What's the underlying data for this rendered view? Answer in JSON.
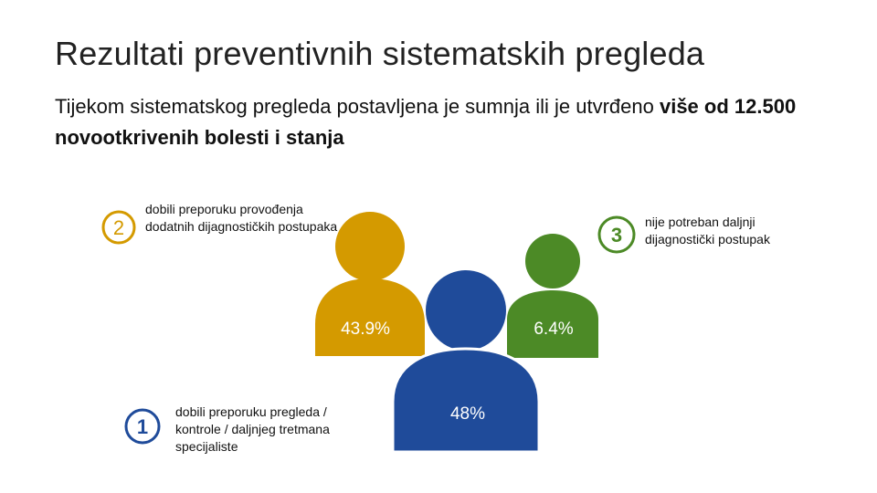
{
  "page": {
    "title": "Rezultati preventivnih sistematskih pregleda",
    "subtitle_regular": "Tijekom sistematskog pregleda postavljena je sumnja ili je utvrđeno ",
    "subtitle_bold": "više od 12.500 novootkrivenih bolesti i stanja"
  },
  "colors": {
    "gold": "#d49a00",
    "blue": "#1f4b9a",
    "green": "#4c8a26",
    "badge_gold": "#d49a00",
    "badge_blue": "#1f4b9a",
    "badge_green": "#4c8a26"
  },
  "chart_data": {
    "type": "pie",
    "categories": [
      "dobili preporuku pregleda / kontrole / daljnjeg tretmana specijaliste",
      "dobili preporuku provođenja dodatnih dijagnostičkih postupaka",
      "nije potreban daljnji dijagnostički postupak"
    ],
    "values": [
      48,
      43.9,
      6.4
    ],
    "value_labels": [
      "48%",
      "43.9%",
      "6.4%"
    ],
    "badge_numbers": [
      "1",
      "2",
      "3"
    ],
    "series_colors": [
      "#1f4b9a",
      "#d49a00",
      "#4c8a26"
    ]
  }
}
